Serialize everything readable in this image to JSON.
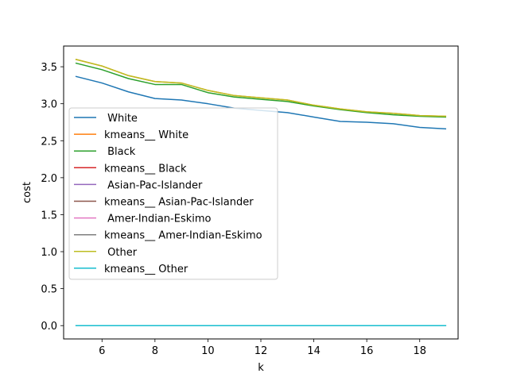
{
  "chart_data": {
    "type": "line",
    "title": "",
    "xlabel": "k",
    "ylabel": "cost",
    "xlim": [
      4.55,
      19.45
    ],
    "ylim": [
      -0.18,
      3.78
    ],
    "xticks": [
      6,
      8,
      10,
      12,
      14,
      16,
      18
    ],
    "yticks": [
      0.0,
      0.5,
      1.0,
      1.5,
      2.0,
      2.5,
      3.0,
      3.5
    ],
    "grid": false,
    "legend_position": "center-left",
    "x": [
      5,
      6,
      7,
      8,
      9,
      10,
      11,
      12,
      13,
      14,
      15,
      16,
      17,
      18,
      19
    ],
    "series": [
      {
        "name": " White",
        "color": "#1f77b4",
        "values": [
          3.37,
          3.28,
          3.16,
          3.07,
          3.05,
          3.0,
          2.94,
          2.91,
          2.88,
          2.82,
          2.76,
          2.75,
          2.73,
          2.68,
          2.66
        ]
      },
      {
        "name": "kmeans__ White",
        "color": "#ff7f0e",
        "values": [
          3.6,
          3.51,
          3.38,
          3.3,
          3.28,
          3.18,
          3.11,
          3.08,
          3.05,
          2.98,
          2.93,
          2.89,
          2.87,
          2.84,
          2.83
        ]
      },
      {
        "name": " Black",
        "color": "#2ca02c",
        "values": [
          3.55,
          3.46,
          3.34,
          3.26,
          3.26,
          3.15,
          3.09,
          3.06,
          3.03,
          2.97,
          2.92,
          2.88,
          2.85,
          2.83,
          2.82
        ]
      },
      {
        "name": "kmeans__ Black",
        "color": "#d62728",
        "values": [
          0,
          0,
          0,
          0,
          0,
          0,
          0,
          0,
          0,
          0,
          0,
          0,
          0,
          0,
          0
        ]
      },
      {
        "name": " Asian-Pac-Islander",
        "color": "#9467bd",
        "values": [
          0,
          0,
          0,
          0,
          0,
          0,
          0,
          0,
          0,
          0,
          0,
          0,
          0,
          0,
          0
        ]
      },
      {
        "name": "kmeans__ Asian-Pac-Islander",
        "color": "#8c564b",
        "values": [
          0,
          0,
          0,
          0,
          0,
          0,
          0,
          0,
          0,
          0,
          0,
          0,
          0,
          0,
          0
        ]
      },
      {
        "name": " Amer-Indian-Eskimo",
        "color": "#e377c2",
        "values": [
          0,
          0,
          0,
          0,
          0,
          0,
          0,
          0,
          0,
          0,
          0,
          0,
          0,
          0,
          0
        ]
      },
      {
        "name": "kmeans__ Amer-Indian-Eskimo",
        "color": "#7f7f7f",
        "values": [
          0,
          0,
          0,
          0,
          0,
          0,
          0,
          0,
          0,
          0,
          0,
          0,
          0,
          0,
          0
        ]
      },
      {
        "name": " Other",
        "color": "#bcbd22",
        "values": [
          3.6,
          3.51,
          3.38,
          3.3,
          3.28,
          3.18,
          3.11,
          3.08,
          3.05,
          2.98,
          2.93,
          2.89,
          2.87,
          2.84,
          2.83
        ]
      },
      {
        "name": "kmeans__ Other",
        "color": "#17becf",
        "values": [
          0,
          0,
          0,
          0,
          0,
          0,
          0,
          0,
          0,
          0,
          0,
          0,
          0,
          0,
          0
        ]
      }
    ]
  }
}
